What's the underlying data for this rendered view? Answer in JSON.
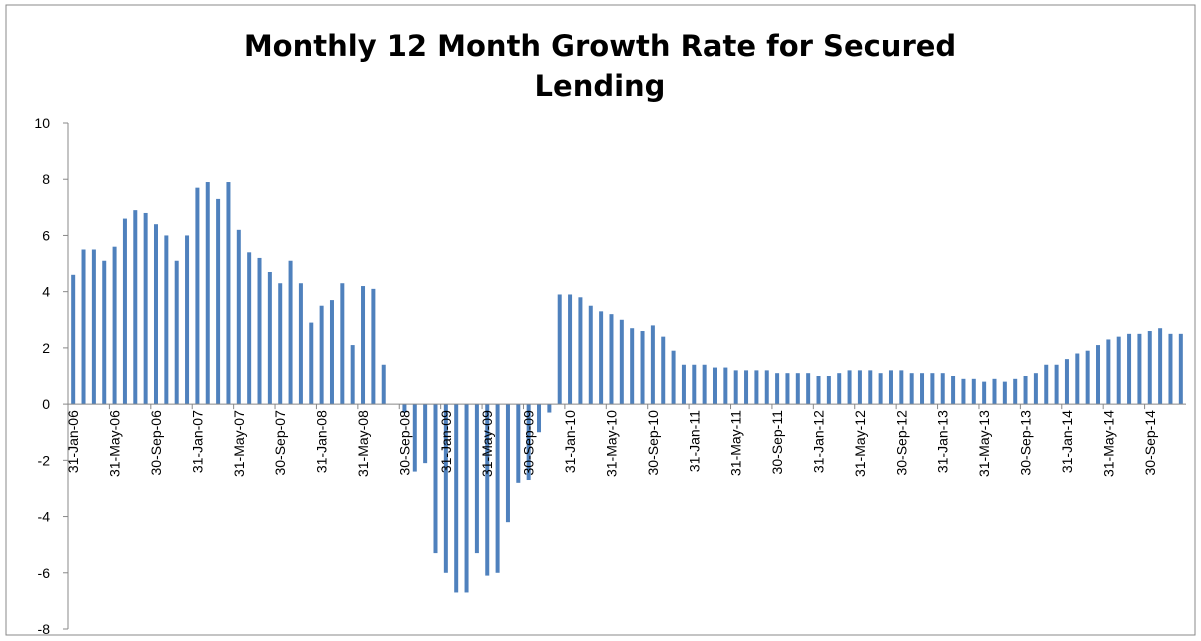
{
  "chart_data": {
    "type": "bar",
    "title": "Monthly 12 Month Growth Rate for Secured Lending",
    "color": "#4f81bd",
    "ylim": [
      -8,
      10
    ],
    "yticks": [
      -8,
      -6,
      -4,
      -2,
      0,
      2,
      4,
      6,
      8,
      10
    ],
    "grid": false,
    "categories": [
      "31-Jan-06",
      null,
      null,
      null,
      "31-May-06",
      null,
      null,
      null,
      "30-Sep-06",
      null,
      null,
      null,
      "31-Jan-07",
      null,
      null,
      null,
      "31-May-07",
      null,
      null,
      null,
      "30-Sep-07",
      null,
      null,
      null,
      "31-Jan-08",
      null,
      null,
      null,
      "31-May-08",
      null,
      null,
      null,
      "30-Sep-08",
      null,
      null,
      null,
      "31-Jan-09",
      null,
      null,
      null,
      "31-May-09",
      null,
      null,
      null,
      "30-Sep-09",
      null,
      null,
      null,
      "31-Jan-10",
      null,
      null,
      null,
      "31-May-10",
      null,
      null,
      null,
      "30-Sep-10",
      null,
      null,
      null,
      "31-Jan-11",
      null,
      null,
      null,
      "31-May-11",
      null,
      null,
      null,
      "30-Sep-11",
      null,
      null,
      null,
      "31-Jan-12",
      null,
      null,
      null,
      "31-May-12",
      null,
      null,
      null,
      "30-Sep-12",
      null,
      null,
      null,
      "31-Jan-13",
      null,
      null,
      null,
      "31-May-13",
      null,
      null,
      null,
      "30-Sep-13",
      null,
      null,
      null,
      "31-Jan-14",
      null,
      null,
      null,
      "31-May-14",
      null,
      null,
      null,
      "30-Sep-14",
      null,
      null,
      null
    ],
    "values": [
      4.6,
      5.5,
      5.5,
      5.1,
      5.6,
      6.6,
      6.9,
      6.8,
      6.4,
      6.0,
      5.1,
      6.0,
      7.7,
      7.9,
      7.3,
      7.9,
      6.2,
      5.4,
      5.2,
      4.7,
      4.3,
      5.1,
      4.3,
      2.9,
      3.5,
      3.7,
      4.3,
      2.1,
      4.2,
      4.1,
      1.4,
      0,
      -0.3,
      -2.4,
      -2.1,
      -5.3,
      -6.0,
      -6.7,
      -6.7,
      -5.3,
      -6.1,
      -6.0,
      -4.2,
      -2.8,
      -2.7,
      -1.0,
      -0.3,
      3.9,
      3.9,
      3.8,
      3.5,
      3.3,
      3.2,
      3.0,
      2.7,
      2.6,
      2.8,
      2.4,
      1.9,
      1.4,
      1.4,
      1.4,
      1.3,
      1.3,
      1.2,
      1.2,
      1.2,
      1.2,
      1.1,
      1.1,
      1.1,
      1.1,
      1.0,
      1.0,
      1.1,
      1.2,
      1.2,
      1.2,
      1.1,
      1.2,
      1.2,
      1.1,
      1.1,
      1.1,
      1.1,
      1.0,
      0.9,
      0.9,
      0.8,
      0.9,
      0.8,
      0.9,
      1.0,
      1.1,
      1.4,
      1.4,
      1.6,
      1.8,
      1.9,
      2.1,
      2.3,
      2.4,
      2.5,
      2.5,
      2.6,
      2.7,
      2.5,
      2.5
    ]
  }
}
